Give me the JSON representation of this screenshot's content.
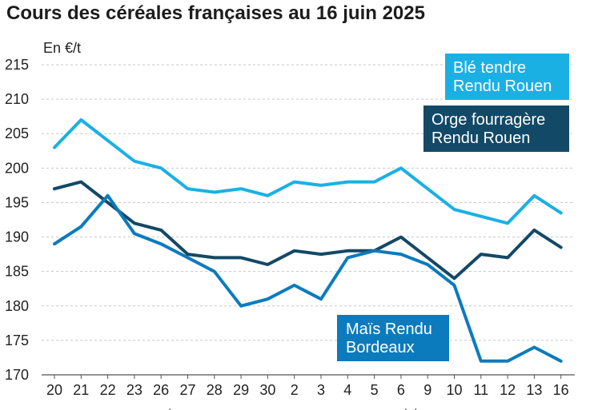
{
  "title": "Cours des céréales françaises au 16 juin 2025",
  "chart_data": {
    "type": "line",
    "title": "Cours des céréales françaises au 16 juin 2025",
    "unit_label": "En €/t",
    "categories": [
      "20",
      "21",
      "22",
      "23",
      "26",
      "27",
      "28",
      "29",
      "30",
      "2",
      "3",
      "4",
      "5",
      "6",
      "9",
      "10",
      "11",
      "12",
      "13",
      "16"
    ],
    "month_labels": [
      {
        "label": "mai",
        "index": 4
      },
      {
        "label": "juin",
        "index": 13.5
      }
    ],
    "ylim": [
      170,
      215
    ],
    "yticks": [
      170,
      175,
      180,
      185,
      190,
      195,
      200,
      205,
      210,
      215
    ],
    "grid": true,
    "series": [
      {
        "name": "Blé tendre Rendu Rouen",
        "legend_lines": [
          "Blé tendre",
          "Rendu Rouen"
        ],
        "color": "#1ab0e4",
        "values": [
          203,
          207,
          204,
          201,
          200,
          197,
          196.5,
          197,
          196,
          198,
          197.5,
          198,
          198,
          200,
          197,
          194,
          193,
          192,
          196,
          193.5
        ]
      },
      {
        "name": "Orge fourragère Rendu Rouen",
        "legend_lines": [
          "Orge fourragère",
          "Rendu Rouen"
        ],
        "color": "#124966",
        "values": [
          197,
          198,
          195,
          192,
          191,
          187.5,
          187,
          187,
          186,
          188,
          187.5,
          188,
          188,
          190,
          187,
          184,
          187.5,
          187,
          191,
          188.5
        ]
      },
      {
        "name": "Maïs Rendu Bordeaux",
        "legend_lines": [
          "Maïs Rendu",
          "Bordeaux"
        ],
        "color": "#0b7bbd",
        "values": [
          189,
          191.5,
          196,
          190.5,
          189,
          187,
          185,
          180,
          181,
          183,
          181,
          187,
          188,
          187.5,
          186,
          183,
          172,
          172,
          174,
          172
        ]
      }
    ]
  }
}
